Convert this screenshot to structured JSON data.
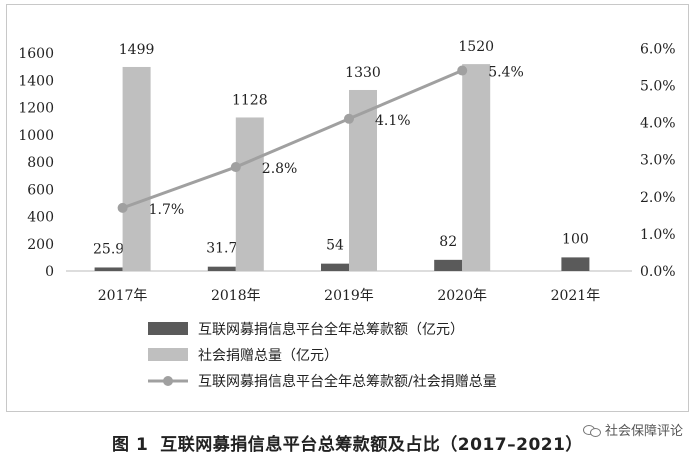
{
  "chart_data": {
    "type": "bar",
    "categories": [
      "2017年",
      "2018年",
      "2019年",
      "2020年",
      "2021年"
    ],
    "series": [
      {
        "name": "互联网募捐信息平台全年总筹款额（亿元）",
        "type": "bar",
        "axis": "left",
        "color": "#5a5a5a",
        "values": [
          25.9,
          31.7,
          54,
          82,
          100
        ],
        "labels": [
          "25.9",
          "31.7",
          "54",
          "82",
          "100"
        ]
      },
      {
        "name": "社会捐赠总量（亿元）",
        "type": "bar",
        "axis": "left",
        "color": "#bfbfbf",
        "values": [
          1499,
          1128,
          1330,
          1520,
          null
        ],
        "labels": [
          "1499",
          "1128",
          "1330",
          "1520",
          ""
        ]
      },
      {
        "name": "互联网募捐信息平台全年总筹款额/社会捐赠总量",
        "type": "line",
        "axis": "right",
        "color": "#a0a0a0",
        "values": [
          1.7,
          2.8,
          4.1,
          5.4,
          null
        ],
        "labels": [
          "1.7%",
          "2.8%",
          "4.1%",
          "5.4%",
          ""
        ]
      }
    ],
    "left_axis": {
      "ylim": [
        0,
        1800
      ],
      "ticks": [
        "0",
        "200",
        "400",
        "600",
        "800",
        "1000",
        "1200",
        "1400",
        "1600"
      ]
    },
    "right_axis": {
      "ylim": [
        0,
        6.6
      ],
      "ticks": [
        "0.0%",
        "1.0%",
        "2.0%",
        "3.0%",
        "4.0%",
        "5.0%",
        "6.0%"
      ]
    },
    "grid": false,
    "legend_position": "bottom"
  },
  "caption": {
    "label": "图 1",
    "text": "互联网募捐信息平台总筹款额及占比（2017–2021）"
  },
  "watermark": {
    "text": "社会保障评论",
    "icon": "wechat-icon"
  }
}
